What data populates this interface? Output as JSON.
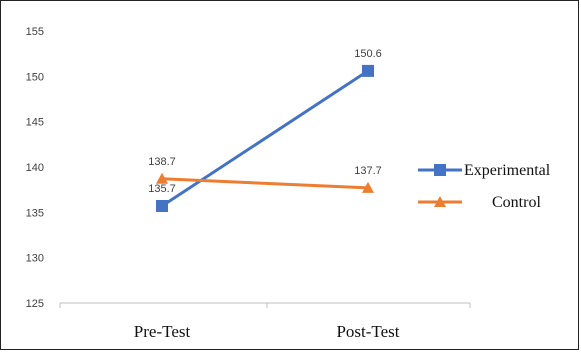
{
  "chart_data": {
    "type": "line",
    "categories": [
      "Pre-Test",
      "Post-Test"
    ],
    "series": [
      {
        "name": "Experimental",
        "values": [
          135.7,
          150.6
        ],
        "color": "#4472C4",
        "marker": "square"
      },
      {
        "name": "Control",
        "values": [
          138.7,
          137.7
        ],
        "color": "#ED7D31",
        "marker": "triangle"
      }
    ],
    "title": "",
    "xlabel": "",
    "ylabel": "",
    "ylim": [
      125,
      155
    ],
    "yticks": [
      125,
      130,
      135,
      140,
      145,
      150,
      155
    ],
    "grid": false,
    "legend": "right",
    "data_labels": [
      "135.7",
      "150.6",
      "138.7",
      "137.7"
    ]
  }
}
